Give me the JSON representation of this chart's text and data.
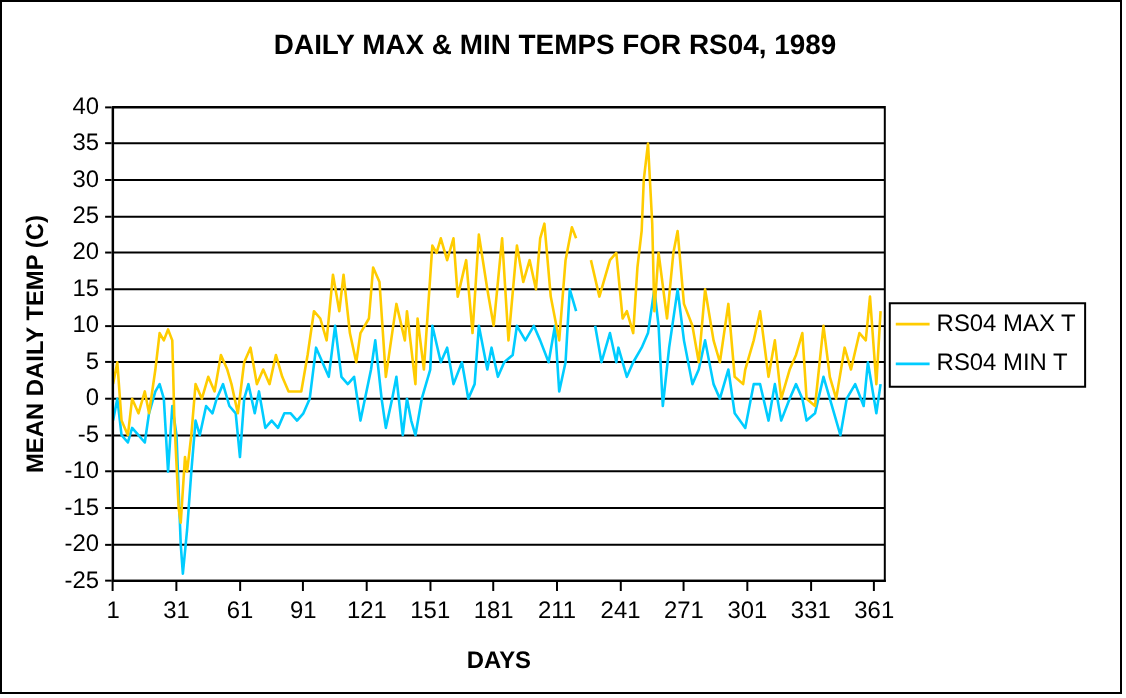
{
  "chart_data": {
    "type": "line",
    "title": "DAILY MAX & MIN TEMPS FOR RS04, 1989",
    "xlabel": "DAYS",
    "ylabel": "MEAN DAILY TEMP (C)",
    "xlim": [
      1,
      366
    ],
    "xticks": [
      1,
      31,
      61,
      91,
      121,
      151,
      181,
      211,
      241,
      271,
      301,
      331,
      361
    ],
    "ylim": [
      -25,
      40
    ],
    "yticks": [
      -25,
      -20,
      -15,
      -10,
      -5,
      0,
      5,
      10,
      15,
      20,
      25,
      30,
      35,
      40
    ],
    "grid": "y",
    "legend": "right",
    "marker": "none",
    "line_style": "solid",
    "series": [
      {
        "name": "RS04 MAX T",
        "color": "#ffcc00",
        "x": [
          1,
          3,
          5,
          8,
          10,
          13,
          16,
          18,
          21,
          23,
          25,
          27,
          29,
          30,
          32,
          33,
          35,
          36,
          38,
          40,
          43,
          46,
          49,
          52,
          55,
          57,
          60,
          63,
          66,
          69,
          72,
          75,
          78,
          81,
          84,
          87,
          90,
          93,
          96,
          99,
          102,
          105,
          108,
          110,
          113,
          116,
          118,
          122,
          124,
          127,
          130,
          135,
          139,
          140,
          144,
          145,
          148,
          152,
          154,
          156,
          159,
          162,
          164,
          168,
          171,
          174,
          178,
          181,
          185,
          188,
          192,
          195,
          198,
          201,
          203,
          205,
          208,
          212,
          215,
          218,
          220,
          223,
          227,
          231,
          236,
          239,
          242,
          244,
          247,
          249,
          251,
          252,
          254,
          256,
          257,
          259,
          263,
          266,
          268,
          271,
          275,
          278,
          281,
          285,
          288,
          292,
          295,
          299,
          300,
          304,
          307,
          311,
          314,
          317,
          321,
          324,
          327,
          329,
          333,
          337,
          340,
          343,
          347,
          350,
          354,
          357,
          359,
          362,
          364
        ],
        "values": [
          2,
          5,
          -3,
          -5,
          0,
          -2,
          1,
          -2,
          4,
          9,
          8,
          9.5,
          8,
          -3,
          -15,
          -17,
          -8,
          -10,
          -5,
          2,
          0,
          3,
          1,
          6,
          4,
          2,
          -2,
          5,
          7,
          2,
          4,
          2,
          6,
          3,
          1,
          1,
          1,
          6,
          12,
          11,
          8,
          17,
          12,
          17,
          9,
          5,
          9,
          11,
          18,
          16,
          3,
          13,
          8,
          12,
          2,
          11,
          4,
          21,
          20,
          22,
          19,
          22,
          14,
          19,
          9,
          22.5,
          15,
          10,
          22,
          8,
          21,
          16,
          19,
          15,
          22,
          24,
          14,
          8,
          19,
          23.5,
          22,
          null,
          19,
          14,
          19,
          20,
          11,
          12,
          9,
          18,
          23,
          30,
          35,
          24,
          12,
          20,
          11,
          20,
          23,
          13,
          10,
          5,
          15,
          8,
          5,
          13,
          3,
          2,
          4,
          8,
          12,
          3,
          8,
          0,
          4,
          6,
          9,
          0,
          -1,
          10,
          3,
          0,
          7,
          4,
          9,
          8,
          14,
          2,
          12
        ]
      },
      {
        "name": "RS04 MIN T",
        "color": "#00ccff",
        "x": [
          1,
          3,
          5,
          8,
          10,
          13,
          16,
          18,
          21,
          23,
          25,
          27,
          29,
          31,
          33,
          34,
          36,
          38,
          40,
          42,
          45,
          48,
          50,
          53,
          56,
          59,
          61,
          63,
          65,
          68,
          70,
          73,
          76,
          79,
          82,
          85,
          88,
          91,
          94,
          97,
          100,
          103,
          106,
          109,
          112,
          115,
          118,
          123,
          125,
          128,
          130,
          133,
          135,
          138,
          140,
          142,
          144,
          147,
          151,
          152,
          156,
          159,
          162,
          166,
          169,
          172,
          174,
          178,
          180,
          183,
          186,
          190,
          192,
          196,
          200,
          203,
          207,
          210,
          212,
          215,
          217,
          220,
          223,
          229,
          232,
          236,
          239,
          240,
          244,
          247,
          251,
          254,
          257,
          259,
          261,
          264,
          268,
          271,
          275,
          278,
          281,
          285,
          288,
          292,
          295,
          300,
          304,
          307,
          311,
          314,
          317,
          321,
          324,
          327,
          329,
          333,
          337,
          340,
          345,
          348,
          352,
          356,
          358,
          362,
          364
        ],
        "values": [
          -3,
          0,
          -5,
          -6,
          -4,
          -5,
          -6,
          -2,
          1,
          2,
          0,
          -10,
          -1,
          -5,
          -20,
          -24,
          -18,
          -10,
          -3,
          -5,
          -1,
          -2,
          0,
          2,
          -1,
          -2,
          -8,
          0,
          2,
          -2,
          1,
          -4,
          -3,
          -4,
          -2,
          -2,
          -3,
          -2,
          0,
          7,
          5,
          3,
          10,
          3,
          2,
          3,
          -3,
          4,
          8,
          0,
          -4,
          0,
          3,
          -5,
          0,
          -3,
          -5,
          0,
          4,
          10,
          5,
          7,
          2,
          5,
          0,
          2,
          10,
          4,
          7,
          3,
          5,
          6,
          10,
          8,
          10,
          8,
          5,
          10,
          1,
          5,
          15,
          12,
          null,
          10,
          5,
          9,
          5,
          7,
          3,
          5,
          7,
          9,
          15,
          10,
          -1,
          7,
          15,
          8,
          2,
          4,
          8,
          2,
          0,
          4,
          -2,
          -4,
          2,
          2,
          -3,
          2,
          -3,
          0,
          2,
          0,
          -3,
          -2,
          3,
          0,
          -5,
          0,
          2,
          -1,
          5,
          -2,
          2
        ]
      }
    ]
  }
}
